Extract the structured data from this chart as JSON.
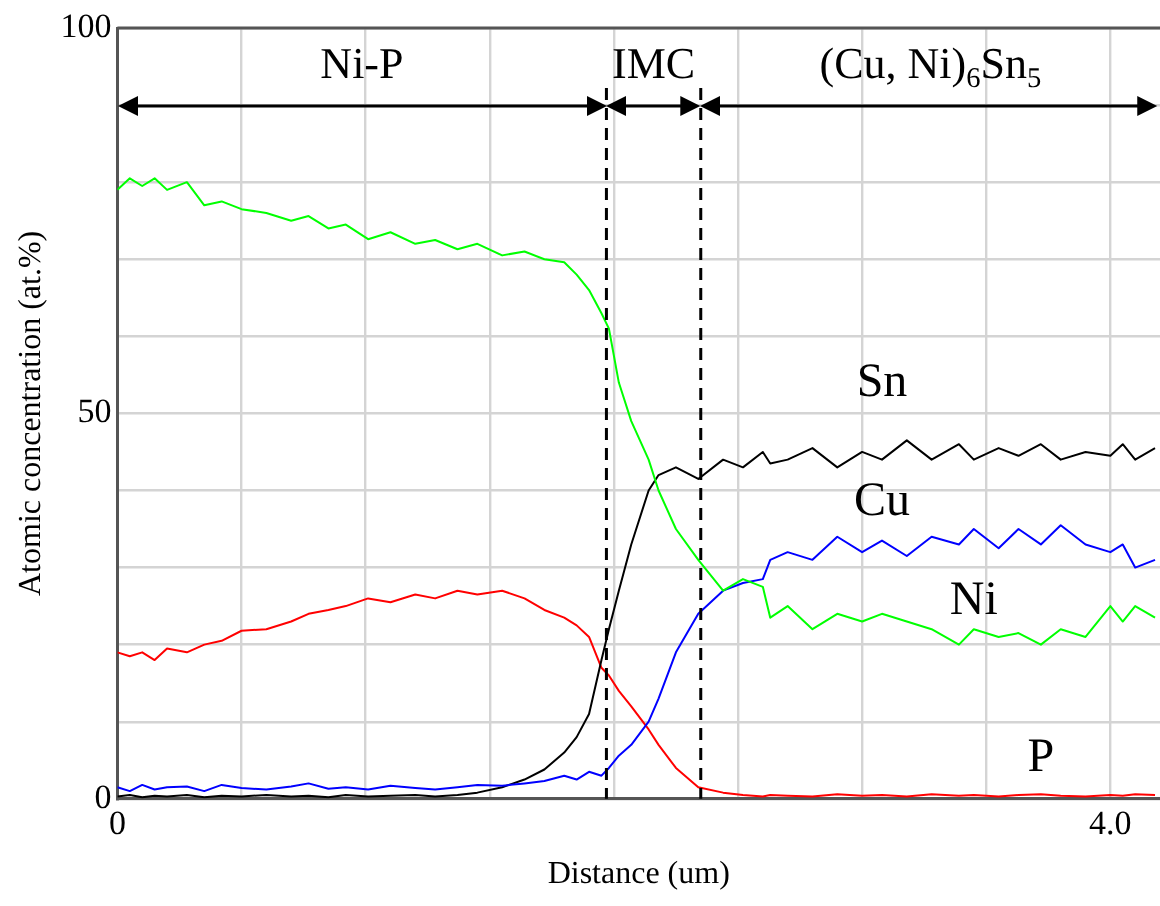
{
  "chart_data": {
    "type": "line",
    "xlabel": "Distance (um)",
    "ylabel": "Atomic concentration (at.%)",
    "x": [
      0,
      0.05,
      0.1,
      0.15,
      0.2,
      0.28,
      0.35,
      0.42,
      0.5,
      0.6,
      0.7,
      0.77,
      0.85,
      0.92,
      1.01,
      1.1,
      1.2,
      1.28,
      1.37,
      1.45,
      1.55,
      1.64,
      1.72,
      1.8,
      1.85,
      1.9,
      1.95,
      1.98,
      2.02,
      2.07,
      2.14,
      2.18,
      2.25,
      2.34,
      2.44,
      2.52,
      2.6,
      2.63,
      2.7,
      2.8,
      2.9,
      3.0,
      3.08,
      3.18,
      3.28,
      3.39,
      3.45,
      3.55,
      3.63,
      3.72,
      3.8,
      3.9,
      4.0,
      4.05,
      4.1,
      4.18
    ],
    "series": [
      {
        "name": "Ni",
        "color": "#00ff00",
        "values": [
          79,
          80.5,
          79.5,
          80.5,
          79,
          80,
          77,
          77.5,
          76.5,
          76,
          75,
          75.6,
          74,
          74.5,
          72.6,
          73.5,
          72,
          72.5,
          71.3,
          72,
          70.5,
          71,
          70,
          69.6,
          68,
          66,
          63,
          61,
          54,
          49,
          44,
          40,
          35,
          31,
          27,
          28.5,
          27.5,
          23.5,
          25,
          22,
          24,
          23,
          24,
          23,
          22,
          20,
          22,
          21,
          21.5,
          20,
          22,
          21,
          25,
          23,
          25,
          23.5
        ]
      },
      {
        "name": "Cu",
        "color": "#0000ff",
        "values": [
          1.5,
          1,
          1.8,
          1.2,
          1.5,
          1.6,
          1,
          1.8,
          1.4,
          1.2,
          1.6,
          2,
          1.3,
          1.5,
          1.2,
          1.7,
          1.4,
          1.2,
          1.5,
          1.8,
          1.7,
          2,
          2.3,
          3,
          2.5,
          3.5,
          3,
          4,
          5.6,
          7,
          10,
          13,
          19,
          24,
          27,
          28,
          28.5,
          31,
          32,
          31,
          34,
          32,
          33.5,
          31.5,
          34,
          33,
          35,
          32.5,
          35,
          33,
          35.5,
          33,
          32,
          33,
          30,
          31
        ]
      },
      {
        "name": "Sn",
        "color": "#000000",
        "values": [
          0.3,
          0.5,
          0.2,
          0.4,
          0.3,
          0.5,
          0.2,
          0.4,
          0.3,
          0.5,
          0.3,
          0.4,
          0.2,
          0.5,
          0.3,
          0.4,
          0.5,
          0.3,
          0.5,
          0.8,
          1.5,
          2.5,
          3.8,
          6,
          8,
          11,
          18,
          22,
          27,
          33,
          40,
          42,
          43,
          41.5,
          44,
          43,
          45,
          43.5,
          44,
          45.5,
          43,
          45,
          44,
          46.5,
          44,
          46,
          44,
          45.5,
          44.5,
          46,
          44,
          45,
          44.5,
          46,
          44,
          45.5
        ]
      },
      {
        "name": "P",
        "color": "#ff0000",
        "values": [
          19,
          18.5,
          19,
          18,
          19.5,
          19,
          20,
          20.5,
          21.8,
          22,
          23,
          24,
          24.5,
          25,
          26,
          25.5,
          26.5,
          26,
          27,
          26.5,
          27,
          26,
          24.5,
          23.5,
          22.5,
          21,
          17,
          16,
          14,
          12,
          9,
          7,
          4,
          1.5,
          0.8,
          0.5,
          0.3,
          0.5,
          0.4,
          0.3,
          0.6,
          0.4,
          0.5,
          0.3,
          0.6,
          0.4,
          0.5,
          0.3,
          0.5,
          0.6,
          0.4,
          0.3,
          0.5,
          0.4,
          0.6,
          0.5
        ]
      }
    ],
    "xlim": [
      0,
      4.2
    ],
    "ylim": [
      0,
      100
    ],
    "xticks": [
      0,
      {
        "value": 0.5,
        "label": null
      },
      {
        "value": 1,
        "label": null
      },
      {
        "value": 1.5,
        "label": null
      },
      {
        "value": 2,
        "label": null
      },
      {
        "value": 2.5,
        "label": null
      },
      {
        "value": 3,
        "label": null
      },
      {
        "value": 3.5,
        "label": null
      },
      {
        "value": 4,
        "label": "4.0"
      }
    ],
    "yticks": [
      0,
      {
        "value": 10,
        "label": null
      },
      {
        "value": 20,
        "label": null
      },
      {
        "value": 30,
        "label": null
      },
      {
        "value": 40,
        "label": null
      },
      50,
      {
        "value": 60,
        "label": null
      },
      {
        "value": 70,
        "label": null
      },
      {
        "value": 80,
        "label": null
      },
      {
        "value": 90,
        "label": null
      },
      100
    ],
    "ref_lines": [
      {
        "axis": "x",
        "value": 1.97,
        "line_style": "dashed",
        "color": "#000000"
      },
      {
        "axis": "x",
        "value": 2.35,
        "line_style": "dashed",
        "color": "#000000"
      }
    ],
    "annotations": [
      "Ni-P",
      "IMC",
      "(Cu, Ni)$_{6}$Sn$_{5}$"
    ],
    "grid": true,
    "legend": false,
    "marker": "none",
    "line_style": "solid"
  }
}
